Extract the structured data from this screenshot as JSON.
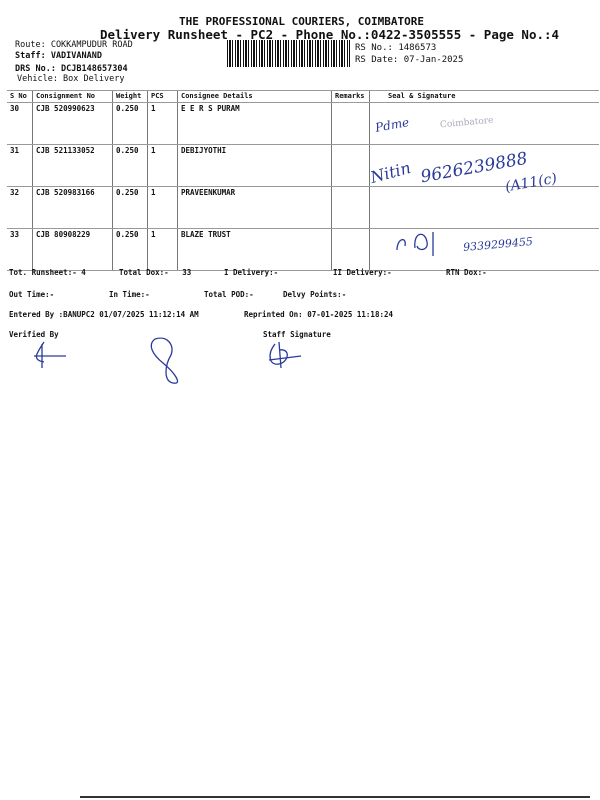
{
  "header": {
    "company": "THE PROFESSIONAL COURIERS, COIMBATORE",
    "title": "Delivery Runsheet - PC2 - Phone No.:0422-3505555 - Page No.:4",
    "route": "Route: COKKAMPUDUR ROAD",
    "staff": "Staff: VADIVANAND",
    "drs": "DRS No.: DCJB148657304",
    "vehicle": "Vehicle: Box Delivery",
    "rs_no": "RS No.: 1486573",
    "rs_date": "RS Date: 07-Jan-2025"
  },
  "table": {
    "columns": [
      "S No",
      "Consignment No",
      "Weight",
      "PCS",
      "Consignee Details",
      "Remarks",
      "Seal & Signature"
    ],
    "rows": [
      {
        "sno": "30",
        "consignment": "CJB 520990623",
        "weight": "0.250",
        "pcs": "1",
        "consignee": "E E R S PURAM",
        "remarks": ""
      },
      {
        "sno": "31",
        "consignment": "CJB 521133052",
        "weight": "0.250",
        "pcs": "1",
        "consignee": "DEBIJYOTHI",
        "remarks": ""
      },
      {
        "sno": "32",
        "consignment": "CJB 520983166",
        "weight": "0.250",
        "pcs": "1",
        "consignee": "PRAVEENKUMAR",
        "remarks": ""
      },
      {
        "sno": "33",
        "consignment": "CJB 80908229",
        "weight": "0.250",
        "pcs": "1",
        "consignee": "BLAZE TRUST",
        "remarks": ""
      }
    ]
  },
  "handwriting": {
    "row30": "Pdme",
    "stamp": "Coimbatore",
    "row31_name": "Nitin",
    "row31_phone": "9626239888",
    "row31_note": "(A11(c)",
    "row33_phone": "9339299455"
  },
  "summary": {
    "tot_runsheet": "Tot. Runsheet:- 4",
    "total_dox": "Total Dox:-   33",
    "i_delivery": "I Delivery:-",
    "ii_delivery": "II Delivery:-",
    "rtn_dox": "RTN Dox:-",
    "out_time": "Out Time:-",
    "in_time": "In Time:-",
    "total_pod": "Total POD:-",
    "delvy_points": "Delvy Points:-",
    "entered_by": "Entered By :BANUPC2 01/07/2025 11:12:14 AM",
    "reprinted_on": "Reprinted On: 07-01-2025 11:18:24",
    "verified_by": "Verified By",
    "staff_signature": "Staff Signature"
  }
}
